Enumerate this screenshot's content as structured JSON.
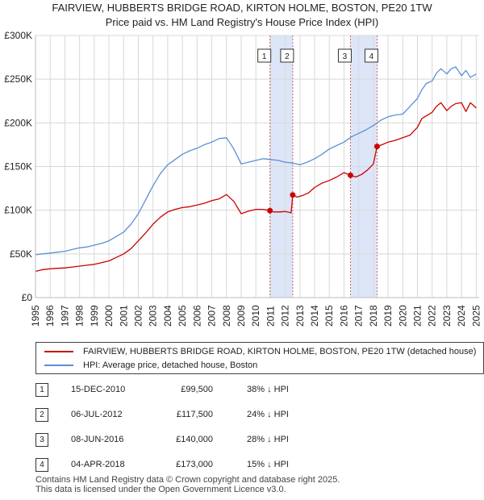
{
  "title_line1": "FAIRVIEW, HUBBERTS BRIDGE ROAD, KIRTON HOLME, BOSTON, PE20 1TW",
  "title_line2": "Price paid vs. HM Land Registry's House Price Index (HPI)",
  "colors": {
    "property": "#cc0000",
    "hpi": "#5b8fd6",
    "band": "#dde6f8",
    "marker_line": "#cc6666"
  },
  "chart_data": {
    "type": "line",
    "xlim": [
      1995.0,
      2025.2
    ],
    "ylim": [
      0,
      300000
    ],
    "ytick_values": [
      0,
      50000,
      100000,
      150000,
      200000,
      250000,
      300000
    ],
    "ytick_labels": [
      "£0",
      "£50K",
      "£100K",
      "£150K",
      "£200K",
      "£250K",
      "£300K"
    ],
    "xtick_values": [
      1995,
      1996,
      1997,
      1998,
      1999,
      2000,
      2001,
      2002,
      2003,
      2004,
      2005,
      2006,
      2007,
      2008,
      2009,
      2010,
      2011,
      2012,
      2013,
      2014,
      2015,
      2016,
      2017,
      2018,
      2019,
      2020,
      2021,
      2022,
      2023,
      2024,
      2025
    ],
    "xtick_labels": [
      "1995",
      "1996",
      "1997",
      "1998",
      "1999",
      "2000",
      "2001",
      "2002",
      "2003",
      "2004",
      "2005",
      "2006",
      "2007",
      "2008",
      "2009",
      "2010",
      "2011",
      "2012",
      "2013",
      "2014",
      "2015",
      "2016",
      "2017",
      "2018",
      "2019",
      "2020",
      "2021",
      "2022",
      "2023",
      "2024",
      "2025"
    ],
    "grid": true,
    "series": [
      {
        "name": "FAIRVIEW, HUBBERTS BRIDGE ROAD, KIRTON HOLME, BOSTON, PE20 1TW (detached house)",
        "x": [
          1995.0,
          1995.5,
          1996.0,
          1996.5,
          1997.0,
          1997.5,
          1998.0,
          1998.5,
          1999.0,
          1999.5,
          2000.0,
          2000.5,
          2001.0,
          2001.5,
          2002.0,
          2002.5,
          2003.0,
          2003.5,
          2004.0,
          2004.5,
          2005.0,
          2005.5,
          2006.0,
          2006.5,
          2007.0,
          2007.5,
          2008.0,
          2008.5,
          2009.0,
          2009.5,
          2010.0,
          2010.5,
          2010.96,
          2011.2,
          2011.6,
          2012.0,
          2012.4,
          2012.51,
          2012.8,
          2013.2,
          2013.6,
          2014.0,
          2014.5,
          2015.0,
          2015.5,
          2016.0,
          2016.44,
          2016.8,
          2017.2,
          2017.6,
          2018.0,
          2018.25,
          2018.6,
          2019.0,
          2019.5,
          2020.0,
          2020.5,
          2021.0,
          2021.3,
          2021.6,
          2022.0,
          2022.3,
          2022.6,
          2023.0,
          2023.3,
          2023.6,
          2024.0,
          2024.3,
          2024.6,
          2025.0
        ],
        "y": [
          30000,
          32000,
          33000,
          33500,
          34000,
          35000,
          36000,
          37000,
          38000,
          40000,
          42000,
          46000,
          50000,
          56000,
          65000,
          74000,
          84000,
          92000,
          98000,
          101000,
          103000,
          104000,
          106000,
          108000,
          111000,
          113000,
          118000,
          110000,
          96000,
          99000,
          101000,
          101000,
          99500,
          98000,
          98000,
          98500,
          97000,
          117500,
          115000,
          117000,
          120000,
          126000,
          131000,
          134000,
          138000,
          143000,
          140000,
          138000,
          141000,
          146000,
          153000,
          173000,
          175000,
          178000,
          180000,
          183000,
          186000,
          195000,
          205000,
          208000,
          212000,
          219000,
          223000,
          214000,
          219000,
          222000,
          223000,
          213000,
          223000,
          217000
        ]
      },
      {
        "name": "HPI: Average price, detached house, Boston",
        "x": [
          1995.0,
          1995.5,
          1996.0,
          1996.5,
          1997.0,
          1997.5,
          1998.0,
          1998.5,
          1999.0,
          1999.5,
          2000.0,
          2000.5,
          2001.0,
          2001.5,
          2002.0,
          2002.5,
          2003.0,
          2003.5,
          2004.0,
          2004.5,
          2005.0,
          2005.5,
          2006.0,
          2006.5,
          2007.0,
          2007.5,
          2008.0,
          2008.5,
          2009.0,
          2009.5,
          2010.0,
          2010.5,
          2011.0,
          2011.5,
          2012.0,
          2012.5,
          2013.0,
          2013.5,
          2014.0,
          2014.5,
          2015.0,
          2015.5,
          2016.0,
          2016.5,
          2017.0,
          2017.5,
          2018.0,
          2018.5,
          2019.0,
          2019.5,
          2020.0,
          2020.5,
          2021.0,
          2021.3,
          2021.6,
          2022.0,
          2022.3,
          2022.6,
          2023.0,
          2023.3,
          2023.6,
          2024.0,
          2024.3,
          2024.6,
          2025.0
        ],
        "y": [
          49000,
          50000,
          51000,
          52000,
          53000,
          55000,
          57000,
          58000,
          60000,
          62000,
          65000,
          70000,
          75000,
          84000,
          96000,
          112000,
          128000,
          142000,
          152000,
          158000,
          164000,
          168000,
          171000,
          175000,
          178000,
          182000,
          183000,
          170000,
          153000,
          155000,
          157000,
          159000,
          158000,
          157000,
          155000,
          154000,
          152000,
          155000,
          159000,
          164000,
          170000,
          174000,
          178000,
          184000,
          188000,
          192000,
          197000,
          203000,
          207000,
          209000,
          210000,
          219000,
          228000,
          238000,
          245000,
          248000,
          257000,
          262000,
          256000,
          262000,
          264000,
          254000,
          260000,
          252000,
          256000
        ]
      }
    ],
    "transactions": [
      {
        "num": "1",
        "x": 2010.96,
        "y": 99500
      },
      {
        "num": "2",
        "x": 2012.51,
        "y": 117500
      },
      {
        "num": "3",
        "x": 2016.44,
        "y": 140000
      },
      {
        "num": "4",
        "x": 2018.25,
        "y": 173000
      }
    ]
  },
  "legend": {
    "property_label": "FAIRVIEW, HUBBERTS BRIDGE ROAD, KIRTON HOLME, BOSTON, PE20 1TW (detached house)",
    "hpi_label": "HPI: Average price, detached house, Boston"
  },
  "transactions_table": [
    {
      "num": "1",
      "date": "15-DEC-2010",
      "price": "£99,500",
      "hpi": "38% ↓ HPI"
    },
    {
      "num": "2",
      "date": "06-JUL-2012",
      "price": "£117,500",
      "hpi": "24% ↓ HPI"
    },
    {
      "num": "3",
      "date": "08-JUN-2016",
      "price": "£140,000",
      "hpi": "28% ↓ HPI"
    },
    {
      "num": "4",
      "date": "04-APR-2018",
      "price": "£173,000",
      "hpi": "15% ↓ HPI"
    }
  ],
  "footer_line1": "Contains HM Land Registry data © Crown copyright and database right 2025.",
  "footer_line2": "This data is licensed under the Open Government Licence v3.0."
}
